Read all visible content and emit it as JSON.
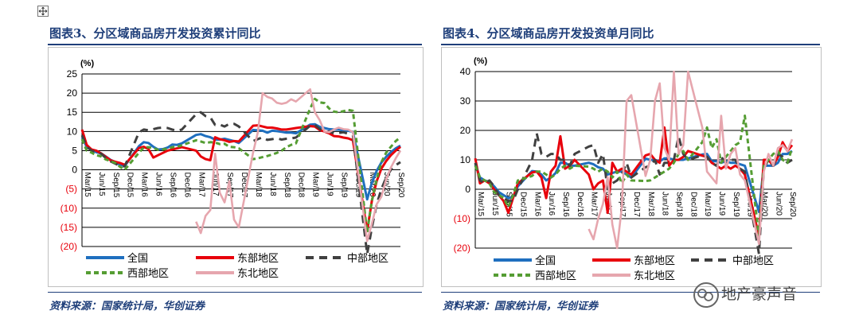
{
  "panels": [
    {
      "title": "图表3、分区域商品房开发投资累计同比",
      "source": "资料来源：国家统计局，华创证券",
      "chart_data": {
        "type": "line",
        "unit_label": "(%)",
        "ylim": [
          -20,
          25
        ],
        "yticks": [
          25,
          20,
          15,
          10,
          5,
          0,
          -5,
          -10,
          -15,
          -20
        ],
        "ytick_labels": [
          "25",
          "20",
          "15",
          "10",
          "5",
          "0",
          "(5)",
          "(10)",
          "(15)",
          "(20)"
        ],
        "xtick_labels": [
          "Mar/15",
          "Jun/15",
          "Sep/15",
          "Dec/15",
          "Mar/16",
          "Jun/16",
          "Sep/16",
          "Dec/16",
          "Mar/17",
          "Jun/17",
          "Sep/17",
          "Dec/17",
          "Mar/18",
          "Jun/18",
          "Sep/18",
          "Dec/18",
          "Mar/19",
          "Jun/19",
          "Sep/19",
          "Dec/19",
          "Mar/20",
          "Jun/20",
          "Sep/20"
        ],
        "x": [
          2015.167,
          2015.25,
          2015.333,
          2015.417,
          2015.5,
          2015.583,
          2015.667,
          2015.75,
          2015.833,
          2015.917,
          2016.167,
          2016.25,
          2016.333,
          2016.417,
          2016.5,
          2016.583,
          2016.667,
          2016.75,
          2016.833,
          2016.917,
          2017.167,
          2017.25,
          2017.333,
          2017.417,
          2017.5,
          2017.583,
          2017.667,
          2017.75,
          2017.833,
          2017.917,
          2018.167,
          2018.25,
          2018.333,
          2018.417,
          2018.5,
          2018.583,
          2018.667,
          2018.75,
          2018.833,
          2018.917,
          2019.167,
          2019.25,
          2019.333,
          2019.417,
          2019.5,
          2019.583,
          2019.667,
          2019.75,
          2019.833,
          2019.917,
          2020.167,
          2020.25,
          2020.333,
          2020.417,
          2020.5,
          2020.583,
          2020.667,
          2020.75
        ],
        "series": [
          {
            "name": "全国",
            "color": "#1f6fbf",
            "dash": "",
            "values": [
              8.5,
              6.0,
              5.1,
              4.6,
              4.3,
              3.5,
              2.6,
              2.0,
              1.3,
              1.0,
              6.2,
              7.2,
              7.0,
              6.0,
              5.3,
              5.4,
              5.8,
              6.6,
              6.5,
              6.9,
              9.1,
              9.3,
              8.8,
              8.5,
              7.9,
              7.9,
              8.1,
              7.8,
              7.5,
              7.0,
              10.4,
              10.3,
              10.2,
              9.7,
              10.2,
              10.1,
              9.9,
              9.7,
              9.7,
              9.5,
              11.8,
              11.9,
              11.2,
              10.9,
              10.6,
              10.5,
              10.5,
              10.3,
              10.2,
              9.9,
              -7.7,
              -3.3,
              -0.3,
              1.9,
              3.4,
              4.6,
              5.6,
              6.3
            ]
          },
          {
            "name": "东部地区",
            "color": "#e8000b",
            "dash": "",
            "values": [
              10.5,
              6.5,
              5.3,
              5.0,
              4.3,
              3.4,
              2.5,
              2.1,
              1.8,
              1.3,
              5.7,
              6.0,
              5.4,
              3.2,
              3.8,
              4.4,
              5.0,
              5.3,
              5.6,
              5.9,
              5.0,
              3.5,
              2.8,
              2.5,
              8.5,
              8.0,
              7.7,
              7.3,
              7.5,
              7.4,
              11.5,
              11.6,
              11.3,
              11.0,
              11.0,
              10.8,
              10.5,
              10.5,
              10.7,
              10.9,
              11.4,
              11.3,
              10.4,
              10.0,
              9.5,
              8.8,
              8.7,
              8.4,
              8.2,
              7.7,
              -16.0,
              -8.0,
              -3.0,
              0.3,
              2.3,
              3.8,
              5.0,
              6.0
            ]
          },
          {
            "name": "中部地区",
            "color": "#404040",
            "dash": "10 7",
            "values": [
              9.0,
              6.0,
              5.0,
              4.6,
              4.2,
              3.1,
              2.2,
              1.6,
              1.0,
              0.9,
              9.8,
              10.5,
              10.3,
              10.6,
              10.9,
              11.0,
              10.9,
              10.5,
              10.2,
              10.5,
              14.5,
              15.0,
              14.0,
              13.7,
              11.7,
              11.8,
              11.3,
              12.0,
              12.0,
              11.3,
              7.5,
              8.0,
              8.5,
              7.8,
              8.0,
              8.2,
              7.9,
              8.1,
              8.2,
              8.4,
              11.5,
              11.7,
              10.7,
              9.8,
              10.0,
              9.5,
              9.6,
              9.8,
              9.4,
              9.0,
              -22.0,
              -15.0,
              -9.0,
              -5.0,
              -2.0,
              0.0,
              1.2,
              2.0
            ]
          },
          {
            "name": "西部地区",
            "color": "#559d33",
            "dash": "6 4",
            "values": [
              8.0,
              5.0,
              4.5,
              3.8,
              3.5,
              2.7,
              2.3,
              1.8,
              0.8,
              0.0,
              4.5,
              5.8,
              5.9,
              5.7,
              5.2,
              5.3,
              5.5,
              5.9,
              6.0,
              6.4,
              7.7,
              7.4,
              7.0,
              7.2,
              7.1,
              6.7,
              6.8,
              6.0,
              5.9,
              5.6,
              2.8,
              3.0,
              3.3,
              3.6,
              4.0,
              4.4,
              5.0,
              5.9,
              6.5,
              6.9,
              16.0,
              18.5,
              17.6,
              17.4,
              16.0,
              15.2,
              15.0,
              15.3,
              15.6,
              15.4,
              -16.3,
              -8.0,
              -2.5,
              2.0,
              4.5,
              6.0,
              7.5,
              8.5
            ]
          },
          {
            "name": "东北地区",
            "color": "#e6a6ae",
            "dash": "",
            "values": [
              null,
              null,
              null,
              null,
              null,
              null,
              null,
              null,
              null,
              null,
              null,
              null,
              null,
              null,
              null,
              null,
              null,
              null,
              null,
              null,
              -13.5,
              -16.5,
              -12.0,
              -10.5,
              4.2,
              -6.0,
              -8.5,
              -3.0,
              -13.0,
              -15.0,
              4.5,
              9.8,
              20.0,
              19.0,
              18.6,
              17.5,
              17.2,
              17.5,
              18.4,
              17.8,
              21.0,
              15.0,
              13.0,
              10.0,
              9.8,
              10.5,
              11.0,
              10.6,
              10.5,
              9.8,
              -18.6,
              -14.0,
              -9.0,
              -7.0,
              -2.5,
              0.6,
              3.0,
              5.0
            ]
          }
        ]
      }
    },
    {
      "title": "图表4、分区域商品房开发投资单月同比",
      "source": "资料来源：国家统计局，华创证券",
      "chart_data": {
        "type": "line",
        "unit_label": "(%)",
        "ylim": [
          -20,
          40
        ],
        "yticks": [
          40,
          30,
          20,
          10,
          0,
          -10,
          -20
        ],
        "ytick_labels": [
          "40",
          "30",
          "20",
          "10",
          "0",
          "(10)",
          "(20)"
        ],
        "xtick_labels": [
          "Mar/15",
          "Jun/15",
          "Sep/15",
          "Dec/15",
          "Mar/16",
          "Jun/16",
          "Sep/16",
          "Dec/16",
          "Mar/17",
          "Jun/17",
          "Sep/17",
          "Dec/17",
          "Mar/18",
          "Jun/18",
          "Sep/18",
          "Dec/18",
          "Mar/19",
          "Jun/19",
          "Sep/19",
          "Dec/19",
          "Mar/20",
          "Jun/20",
          "Sep/20"
        ],
        "x": [
          2015.167,
          2015.25,
          2015.333,
          2015.417,
          2015.5,
          2015.583,
          2015.667,
          2015.75,
          2015.833,
          2015.917,
          2016.167,
          2016.25,
          2016.333,
          2016.417,
          2016.5,
          2016.583,
          2016.667,
          2016.75,
          2016.833,
          2016.917,
          2017.167,
          2017.25,
          2017.333,
          2017.417,
          2017.5,
          2017.583,
          2017.667,
          2017.75,
          2017.833,
          2017.917,
          2018.167,
          2018.25,
          2018.333,
          2018.417,
          2018.5,
          2018.583,
          2018.667,
          2018.75,
          2018.833,
          2018.917,
          2019.167,
          2019.25,
          2019.333,
          2019.417,
          2019.5,
          2019.583,
          2019.667,
          2019.75,
          2019.833,
          2019.917,
          2020.167,
          2020.25,
          2020.333,
          2020.417,
          2020.5,
          2020.583,
          2020.667,
          2020.75
        ],
        "series": [
          {
            "name": "全国",
            "color": "#1f6fbf",
            "dash": "",
            "values": [
              8.5,
              4.0,
              3.0,
              2.5,
              1.0,
              -1.0,
              -2.0,
              -3.0,
              -2.5,
              1.0,
              6.2,
              6.0,
              5.0,
              3.0,
              4.0,
              5.5,
              9.0,
              9.0,
              8.0,
              8.0,
              9.0,
              8.5,
              7.5,
              7.0,
              5.0,
              5.5,
              6.0,
              6.0,
              5.0,
              4.0,
              10.4,
              10.0,
              10.0,
              9.5,
              10.5,
              10.5,
              10.0,
              10.0,
              10.0,
              10.5,
              11.8,
              12.0,
              9.5,
              9.5,
              9.0,
              9.5,
              9.0,
              9.0,
              8.5,
              8.0,
              -7.7,
              8.0,
              8.0,
              8.0,
              9.0,
              12.0,
              12.0,
              13.0
            ]
          },
          {
            "name": "东部地区",
            "color": "#e8000b",
            "dash": "",
            "values": [
              10.5,
              2.0,
              3.0,
              2.0,
              0.0,
              -2.0,
              -4.0,
              -8.0,
              -3.0,
              2.0,
              5.7,
              6.0,
              4.0,
              -3.0,
              6.0,
              8.0,
              18.0,
              7.0,
              8.0,
              10.0,
              5.0,
              0.0,
              2.0,
              3.0,
              -8.0,
              9.0,
              6.0,
              7.0,
              6.0,
              5.0,
              11.5,
              12.0,
              10.0,
              9.0,
              21.0,
              8.0,
              10.0,
              10.0,
              11.0,
              13.0,
              11.4,
              11.0,
              9.0,
              8.0,
              7.0,
              8.0,
              7.0,
              8.0,
              7.0,
              5.0,
              -16.0,
              10.0,
              10.0,
              8.0,
              11.0,
              16.0,
              13.0,
              15.0
            ]
          },
          {
            "name": "中部地区",
            "color": "#404040",
            "dash": "10 7",
            "values": [
              9.0,
              3.0,
              2.0,
              3.0,
              1.0,
              -2.0,
              -3.0,
              -4.0,
              -4.0,
              0.0,
              9.8,
              19.0,
              12.0,
              11.0,
              12.0,
              12.0,
              10.0,
              10.0,
              8.0,
              12.0,
              14.5,
              15.0,
              9.0,
              12.0,
              0.0,
              2.0,
              3.0,
              5.0,
              9.0,
              4.0,
              7.5,
              8.0,
              10.0,
              5.0,
              9.0,
              9.0,
              10.0,
              18.0,
              12.0,
              10.0,
              11.5,
              11.0,
              9.0,
              8.0,
              11.0,
              9.0,
              10.0,
              10.0,
              7.0,
              6.0,
              -22.0,
              7.0,
              10.0,
              8.0,
              12.0,
              11.0,
              9.0,
              10.0
            ]
          },
          {
            "name": "西部地区",
            "color": "#559d33",
            "dash": "6 4",
            "values": [
              8.0,
              4.0,
              3.0,
              2.0,
              -1.0,
              -2.0,
              -3.0,
              -6.0,
              -2.0,
              3.0,
              4.5,
              6.0,
              6.0,
              5.0,
              4.0,
              5.0,
              7.0,
              8.0,
              7.0,
              8.0,
              7.7,
              7.0,
              6.0,
              7.0,
              6.0,
              4.0,
              6.0,
              2.0,
              5.0,
              3.0,
              2.8,
              3.0,
              4.0,
              5.0,
              6.0,
              7.0,
              9.0,
              12.0,
              13.0,
              10.0,
              16.0,
              21.0,
              14.0,
              17.0,
              9.0,
              11.0,
              13.0,
              15.0,
              16.0,
              25.0,
              -16.3,
              8.0,
              10.0,
              12.0,
              13.0,
              10.0,
              9.0,
              14.0
            ]
          },
          {
            "name": "东北地区",
            "color": "#e6a6ae",
            "dash": "",
            "values": [
              null,
              null,
              null,
              null,
              null,
              null,
              null,
              null,
              null,
              null,
              null,
              null,
              null,
              null,
              null,
              null,
              null,
              null,
              null,
              null,
              -13.5,
              -17.0,
              -10.0,
              -5.0,
              4.2,
              -12.0,
              -20.0,
              -6.0,
              30.0,
              32.0,
              4.5,
              10.0,
              30.0,
              36.0,
              14.0,
              10.0,
              40.0,
              12.0,
              15.0,
              40.0,
              21.0,
              6.0,
              4.0,
              2.0,
              25.0,
              7.0,
              12.0,
              14.0,
              5.0,
              3.0,
              -18.6,
              6.0,
              12.0,
              8.0,
              14.0,
              15.0,
              13.0,
              17.0
            ]
          }
        ]
      }
    }
  ],
  "watermark": "地产豪声音"
}
